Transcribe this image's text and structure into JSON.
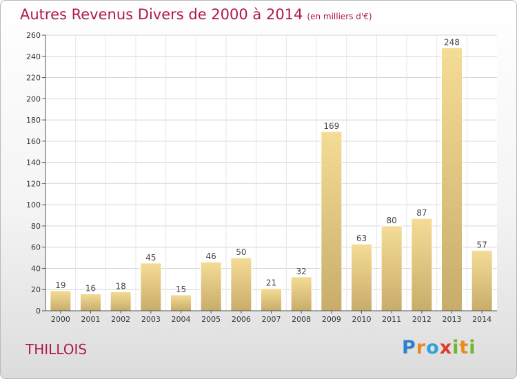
{
  "title": "Autres Revenus Divers de 2000 à 2014",
  "unit_note": "(en milliers d'€)",
  "commune": "THILLOIS",
  "logo_text": "Proxiti",
  "chart_data": {
    "type": "bar",
    "categories": [
      "2000",
      "2001",
      "2002",
      "2003",
      "2004",
      "2005",
      "2006",
      "2007",
      "2008",
      "2009",
      "2010",
      "2011",
      "2012",
      "2013",
      "2014"
    ],
    "values": [
      19,
      16,
      18,
      45,
      15,
      46,
      50,
      21,
      32,
      169,
      63,
      80,
      87,
      248,
      57
    ],
    "ylim": [
      0,
      260
    ],
    "yticks": [
      0,
      20,
      40,
      60,
      80,
      100,
      120,
      140,
      160,
      180,
      200,
      220,
      240,
      260
    ],
    "grid": true,
    "colors": {
      "bar_top": "#f5dc96",
      "bar_bottom": "#c8ad6a",
      "axis": "#555555"
    }
  }
}
